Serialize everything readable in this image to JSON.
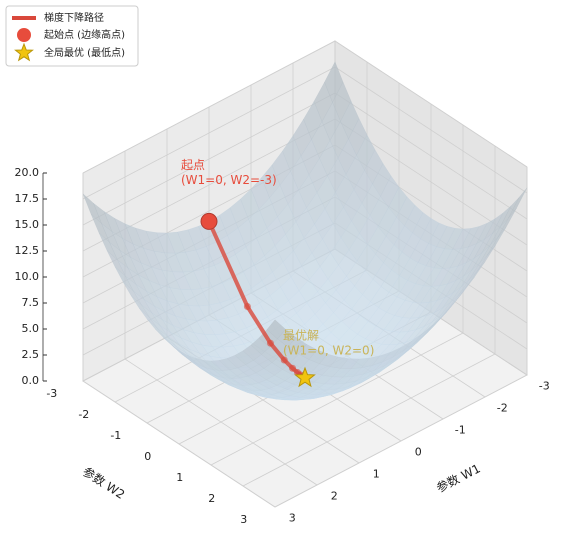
{
  "chart_data": {
    "type": "surface3d",
    "xlabel": "参数 W1",
    "ylabel": "参数 W2",
    "xlim": [
      -3,
      3
    ],
    "xticks": [
      -3,
      -2,
      -1,
      0,
      1,
      2,
      3
    ],
    "ylim": [
      -3,
      3
    ],
    "yticks": [
      -3,
      -2,
      -1,
      0,
      1,
      2,
      3
    ],
    "zlim": [
      0,
      20
    ],
    "zticks": [
      {
        "value": 0,
        "label": "0.0"
      },
      2.5,
      {
        "value": 5,
        "label": "5.0"
      },
      7.5,
      {
        "value": 10,
        "label": "10.0"
      },
      12.5,
      {
        "value": 15,
        "label": "15.0"
      },
      17.5,
      {
        "value": 20,
        "label": "20.0"
      }
    ],
    "path": {
      "name": "梯度下降路径",
      "color": "#d9483b",
      "w1": [
        0,
        0,
        0,
        0,
        0,
        0,
        0,
        0,
        0,
        0
      ],
      "w2": [
        -3,
        -1.8,
        -1.08,
        -0.648,
        -0.389,
        -0.233,
        -0.14,
        -0.084,
        -0.05,
        -0.03
      ],
      "loss": [
        9,
        3.24,
        1.166,
        0.42,
        0.151,
        0.054,
        0.02,
        0.007,
        0.0025,
        0.0009
      ]
    },
    "start": {
      "name": "起始点 (边缘高点)",
      "color": "#e74c3c",
      "w1": 0,
      "w2": -3,
      "loss": 9,
      "annotation": [
        "起点",
        "(W1=0, W2=-3)"
      ]
    },
    "optimum": {
      "name": "全局最优 (最低点)",
      "color": "#f1c40f",
      "w1": 0,
      "w2": 0,
      "loss": 0,
      "annotation": [
        "最优解",
        "(W1=0, W2=0)"
      ]
    }
  }
}
